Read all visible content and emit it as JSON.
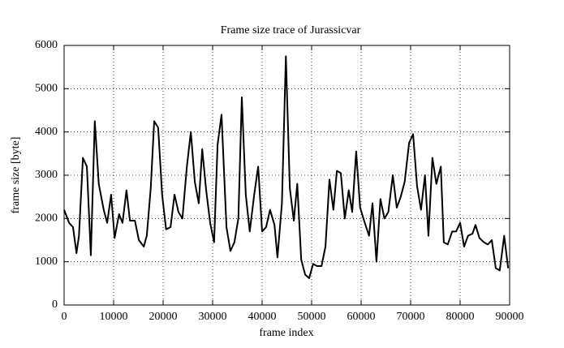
{
  "chart_data": {
    "type": "line",
    "title": "Frame size trace of Jurassicvar",
    "xlabel": "frame index",
    "ylabel": "frame size [byte]",
    "x": [
      0,
      1000,
      1800,
      2500,
      3000,
      3800,
      4600,
      5400,
      6200,
      7000,
      8000,
      8700,
      9500,
      10200,
      11100,
      11800,
      12600,
      13300,
      14300,
      15100,
      16100,
      16700,
      17500,
      18200,
      19000,
      19800,
      20600,
      21500,
      22300,
      23100,
      23900,
      24800,
      25600,
      26400,
      27200,
      27900,
      28700,
      29500,
      30300,
      31000,
      31800,
      32800,
      33600,
      34400,
      35200,
      35900,
      36700,
      37500,
      38400,
      39200,
      40000,
      40800,
      41600,
      42500,
      43100,
      44000,
      44800,
      45600,
      46400,
      47100,
      47900,
      48700,
      49500,
      50300,
      51100,
      52000,
      52800,
      53600,
      54400,
      55100,
      55900,
      56700,
      57500,
      58200,
      59000,
      59800,
      60600,
      61600,
      62300,
      63100,
      63900,
      64700,
      65500,
      66400,
      67200,
      68000,
      68800,
      69700,
      70500,
      71300,
      72100,
      72900,
      73600,
      74400,
      75200,
      76100,
      76700,
      77500,
      78400,
      79200,
      80000,
      80800,
      81600,
      82500,
      83100,
      83900,
      84800,
      85600,
      86400,
      87200,
      88000,
      88900,
      89700
    ],
    "series": [
      {
        "name": "frame size",
        "color": "#000000",
        "values": [
          2200,
          1900,
          1800,
          1200,
          1600,
          3400,
          3200,
          1150,
          4250,
          2800,
          2200,
          1900,
          2550,
          1550,
          2100,
          1900,
          2650,
          1950,
          1950,
          1500,
          1350,
          1600,
          2700,
          4250,
          4100,
          2550,
          1750,
          1800,
          2550,
          2150,
          2000,
          3200,
          4000,
          2850,
          2350,
          3600,
          2650,
          1900,
          1450,
          3700,
          4400,
          1800,
          1250,
          1450,
          2000,
          4800,
          2550,
          1700,
          2550,
          3200,
          1700,
          1800,
          2200,
          1850,
          1100,
          2350,
          5750,
          2700,
          1950,
          2800,
          1050,
          700,
          620,
          950,
          900,
          900,
          1350,
          2900,
          2200,
          3100,
          3050,
          2000,
          2650,
          2150,
          3550,
          2250,
          1950,
          1600,
          2350,
          1000,
          2450,
          2000,
          2150,
          3000,
          2250,
          2500,
          2850,
          3750,
          3950,
          2750,
          2200,
          3000,
          1600,
          3400,
          2800,
          3200,
          1450,
          1400,
          1700,
          1700,
          1900,
          1350,
          1600,
          1650,
          1850,
          1550,
          1450,
          1400,
          1500,
          850,
          800,
          1600,
          850
        ]
      }
    ],
    "xlim": [
      0,
      90000
    ],
    "ylim": [
      0,
      6000
    ],
    "xticks": [
      0,
      10000,
      20000,
      30000,
      40000,
      50000,
      60000,
      70000,
      80000,
      90000
    ],
    "yticks": [
      0,
      1000,
      2000,
      3000,
      4000,
      5000,
      6000
    ],
    "grid": true
  }
}
